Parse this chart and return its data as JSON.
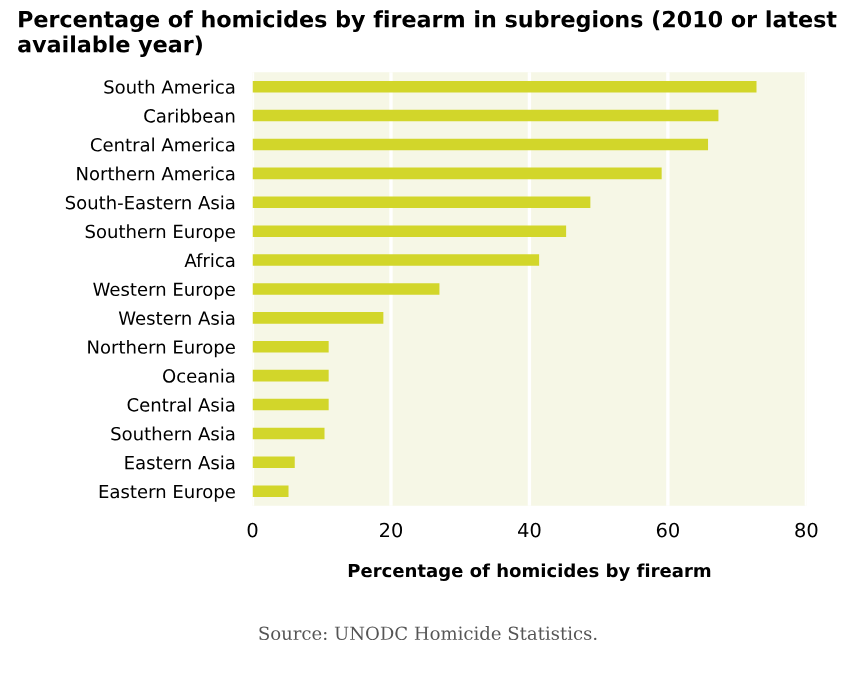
{
  "chart_data": {
    "type": "bar",
    "orientation": "horizontal",
    "title": "Percentage of homicides by firearm in subregions (2010 or latest available year)",
    "xlabel": "Percentage of homicides by firearm",
    "categories": [
      "South America",
      "Caribbean",
      "Central America",
      "Northern America",
      "South-Eastern Asia",
      "Southern Europe",
      "Africa",
      "Western Europe",
      "Western Asia",
      "Northern Europe",
      "Oceania",
      "Central Asia",
      "Southern Asia",
      "Eastern Asia",
      "Eastern Europe"
    ],
    "values": [
      72.8,
      67.3,
      65.8,
      59.1,
      48.8,
      45.3,
      41.4,
      27.0,
      18.9,
      11.0,
      11.0,
      11.0,
      10.4,
      6.1,
      5.2
    ],
    "color": "#d2d62a",
    "xlim": [
      0,
      80
    ],
    "xticks": [
      0,
      20,
      40,
      60,
      80
    ],
    "grid": "x",
    "annotations": [
      "Source: UNODC Homicide Statistics."
    ]
  }
}
